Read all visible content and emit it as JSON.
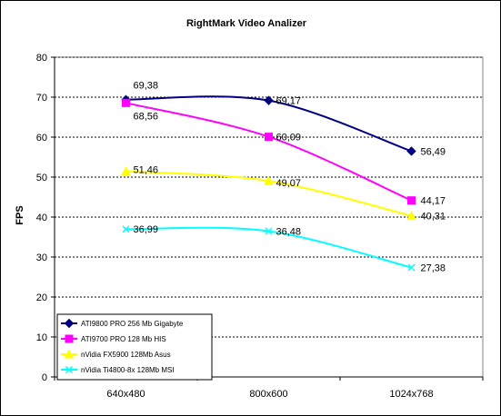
{
  "chart_data": {
    "type": "line",
    "title": "RightMark Video Analizer",
    "xlabel": "",
    "ylabel": "FPS",
    "ylim": [
      0,
      80
    ],
    "ytick_step": 10,
    "grid": "horizontal-dashed",
    "legend_position": "bottom-left",
    "categories": [
      "640x480",
      "800x600",
      "1024x768"
    ],
    "series": [
      {
        "name": "ATI9800 PRO 256 Mb Gigabyte",
        "values": [
          69.38,
          69.17,
          56.49
        ],
        "labels": [
          "69,38",
          "69,17",
          "56,49"
        ],
        "color": "#000080",
        "marker": "diamond"
      },
      {
        "name": "ATI9700 PRO 128 Mb HIS",
        "values": [
          68.56,
          60.09,
          44.17
        ],
        "labels": [
          "68,56",
          "60,09",
          "44,17"
        ],
        "color": "#FF00FF",
        "marker": "square"
      },
      {
        "name": "nVidia FX5900 128Mb Asus",
        "values": [
          51.46,
          49.07,
          40.31
        ],
        "labels": [
          "51,46",
          "49,07",
          "40,31"
        ],
        "color": "#FFFF00",
        "marker": "triangle"
      },
      {
        "name": "nVidia Ti4800-8x 128Mb MSI",
        "values": [
          36.99,
          36.48,
          27.38
        ],
        "labels": [
          "36,99",
          "36,48",
          "27,38"
        ],
        "color": "#00FFFF",
        "marker": "x"
      }
    ]
  }
}
